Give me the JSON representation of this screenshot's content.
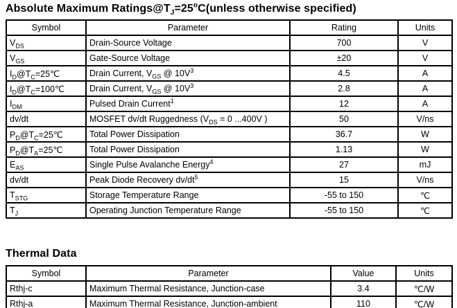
{
  "page": {
    "background_color": "#ffffff",
    "text_color": "#000000",
    "border_color": "#000000"
  },
  "abs_max": {
    "title_segments": [
      "Absolute Maximum Ratings@T",
      {
        "sub": "J"
      },
      "=25",
      {
        "sup": "o"
      },
      "C(unless otherwise specified)"
    ],
    "headers": [
      "Symbol",
      "Parameter",
      "Rating",
      "Units"
    ],
    "rows": [
      {
        "symbol": [
          "V",
          {
            "sub": "DS"
          }
        ],
        "parameter": "Drain-Source Voltage",
        "rating": "700",
        "units": "V"
      },
      {
        "symbol": [
          "V",
          {
            "sub": "GS"
          }
        ],
        "parameter": "Gate-Source Voltage",
        "rating": "±20",
        "units": "V"
      },
      {
        "symbol": [
          "I",
          {
            "sub": "D"
          },
          "@T",
          {
            "sub": "C"
          },
          "=25℃"
        ],
        "parameter": [
          "Drain Current, V",
          {
            "sub": "GS"
          },
          " @ 10V",
          {
            "sup": "3"
          }
        ],
        "rating": "4.5",
        "units": "A"
      },
      {
        "symbol": [
          "I",
          {
            "sub": "D"
          },
          "@T",
          {
            "sub": "C"
          },
          "=100℃"
        ],
        "parameter": [
          "Drain Current, V",
          {
            "sub": "GS"
          },
          " @ 10V",
          {
            "sup": "3"
          }
        ],
        "rating": "2.8",
        "units": "A"
      },
      {
        "symbol": [
          "I",
          {
            "sub": "DM"
          }
        ],
        "parameter": [
          "Pulsed Drain Current",
          {
            "sup": "1"
          }
        ],
        "rating": "12",
        "units": "A"
      },
      {
        "symbol": "dv/dt",
        "parameter": [
          "MOSFET dv/dt Ruggedness (V",
          {
            "sub": "DS"
          },
          " = 0 ...400V )"
        ],
        "rating": "50",
        "units": "V/ns"
      },
      {
        "symbol": [
          "P",
          {
            "sub": "D"
          },
          "@T",
          {
            "sub": "C"
          },
          "=25℃"
        ],
        "parameter": "Total Power Dissipation",
        "rating": "36.7",
        "units": "W"
      },
      {
        "symbol": [
          "P",
          {
            "sub": "D"
          },
          "@T",
          {
            "sub": "A"
          },
          "=25℃"
        ],
        "parameter": "Total Power Dissipation",
        "rating": "1.13",
        "units": "W"
      },
      {
        "symbol": [
          "E",
          {
            "sub": "AS"
          }
        ],
        "parameter": [
          "Single Pulse Avalanche Energy",
          {
            "sup": "4"
          }
        ],
        "rating": "27",
        "units": "mJ"
      },
      {
        "symbol": "dv/dt",
        "parameter": [
          "Peak Diode Recovery dv/dt",
          {
            "sup": "5"
          }
        ],
        "rating": "15",
        "units": "V/ns"
      },
      {
        "symbol": [
          "T",
          {
            "sub": "STG"
          }
        ],
        "parameter": "Storage Temperature Range",
        "rating": "-55 to 150",
        "units": "℃"
      },
      {
        "symbol": [
          "T",
          {
            "sub": "J"
          }
        ],
        "parameter": "Operating Junction Temperature Range",
        "rating": "-55 to 150",
        "units": "℃"
      }
    ]
  },
  "thermal": {
    "title": "Thermal Data",
    "headers": [
      "Symbol",
      "Parameter",
      "Value",
      "Units"
    ],
    "rows": [
      {
        "symbol": "Rthj-c",
        "parameter": "Maximum Thermal Resistance, Junction-case",
        "value": "3.4",
        "units": "℃/W"
      },
      {
        "symbol": "Rthj-a",
        "parameter": "Maximum Thermal Resistance, Junction-ambient",
        "value": "110",
        "units": "℃/W"
      }
    ]
  }
}
